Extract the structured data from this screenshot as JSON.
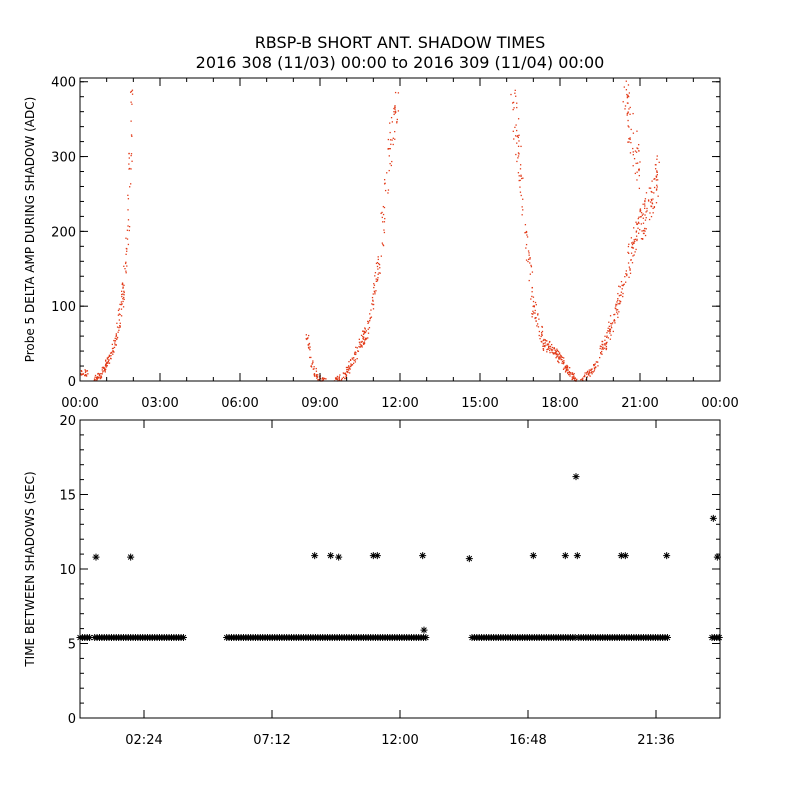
{
  "title_line1": "RBSP-B SHORT ANT. SHADOW TIMES",
  "title_line2": "2016 308 (11/03) 00:00 to 2016 309 (11/04) 00:00",
  "colors": {
    "points_top": "#e23a18",
    "points_bottom": "#000000",
    "axes": "#000000",
    "background": "#ffffff"
  },
  "chart_data": [
    {
      "type": "scatter",
      "ylabel": "Probe 5 DELTA AMP DURING SHADOW (ADC)",
      "xlabel": "",
      "xlim": [
        0,
        24
      ],
      "ylim": [
        0,
        405
      ],
      "x_ticks": [
        "00:00",
        "03:00",
        "06:00",
        "09:00",
        "12:00",
        "15:00",
        "18:00",
        "21:00",
        "00:00"
      ],
      "y_ticks": [
        0,
        100,
        200,
        300,
        400
      ],
      "grid": false,
      "series": [
        {
          "marker": "dot",
          "x_units": "hours since 00:00",
          "description_note": "",
          "clusters": [
            {
              "x": [
                0.0,
                0.3
              ],
              "y": [
                5,
                15
              ],
              "count": 20
            },
            {
              "x_curve": [
                0.5,
                0.8,
                1.1,
                1.4,
                1.6,
                1.8,
                1.95
              ],
              "y_curve": [
                0,
                10,
                30,
                60,
                110,
                200,
                400
              ],
              "count": 180
            },
            {
              "x_curve": [
                8.5,
                8.7,
                8.9,
                9.2
              ],
              "y_curve": [
                60,
                20,
                5,
                0
              ],
              "count": 60
            },
            {
              "x_curve": [
                9.6,
                10.0,
                10.4,
                10.8,
                11.2,
                11.6,
                12.0
              ],
              "y_curve": [
                0,
                10,
                40,
                70,
                150,
                300,
                400
              ],
              "count": 220
            },
            {
              "x_curve": [
                16.2,
                16.6,
                17.0,
                17.4,
                17.8,
                18.2,
                18.6
              ],
              "y_curve": [
                390,
                250,
                100,
                50,
                40,
                20,
                0
              ],
              "count": 260
            },
            {
              "x_curve": [
                18.8,
                19.3,
                19.8,
                20.3,
                20.8,
                21.3,
                21.7
              ],
              "y_curve": [
                0,
                20,
                60,
                120,
                190,
                230,
                280
              ],
              "count": 280
            },
            {
              "x_curve": [
                20.4,
                20.7,
                21.0
              ],
              "y_curve": [
                400,
                330,
                280
              ],
              "count": 60
            }
          ]
        }
      ]
    },
    {
      "type": "scatter",
      "ylabel": "TIME BETWEEN SHADOWS (SEC)",
      "xlabel": "",
      "xlim": [
        0,
        24
      ],
      "ylim": [
        0,
        20
      ],
      "x_ticks": [
        "02:24",
        "07:12",
        "12:00",
        "16:48",
        "21:36"
      ],
      "y_ticks": [
        0,
        5,
        10,
        15,
        20
      ],
      "grid": false,
      "series": [
        {
          "marker": "asterisk",
          "baseline": {
            "value": 5.4,
            "segments": [
              [
                0.0,
                0.4
              ],
              [
                0.55,
                3.9
              ],
              [
                5.5,
                13.0
              ],
              [
                14.7,
                18.6
              ],
              [
                18.7,
                22.1
              ],
              [
                23.7,
                24.0
              ]
            ]
          },
          "points": [
            {
              "x": 0.6,
              "y": 10.8
            },
            {
              "x": 1.9,
              "y": 10.8
            },
            {
              "x": 8.8,
              "y": 10.9
            },
            {
              "x": 9.4,
              "y": 10.9
            },
            {
              "x": 9.7,
              "y": 10.8
            },
            {
              "x": 11.0,
              "y": 10.9
            },
            {
              "x": 11.15,
              "y": 10.9
            },
            {
              "x": 12.85,
              "y": 10.9
            },
            {
              "x": 12.9,
              "y": 5.9
            },
            {
              "x": 14.6,
              "y": 10.7
            },
            {
              "x": 17.0,
              "y": 10.9
            },
            {
              "x": 18.2,
              "y": 10.9
            },
            {
              "x": 18.6,
              "y": 16.2
            },
            {
              "x": 18.65,
              "y": 10.9
            },
            {
              "x": 20.3,
              "y": 10.9
            },
            {
              "x": 20.45,
              "y": 10.9
            },
            {
              "x": 22.0,
              "y": 10.9
            },
            {
              "x": 23.75,
              "y": 13.4
            },
            {
              "x": 23.9,
              "y": 10.8
            }
          ]
        }
      ]
    }
  ]
}
